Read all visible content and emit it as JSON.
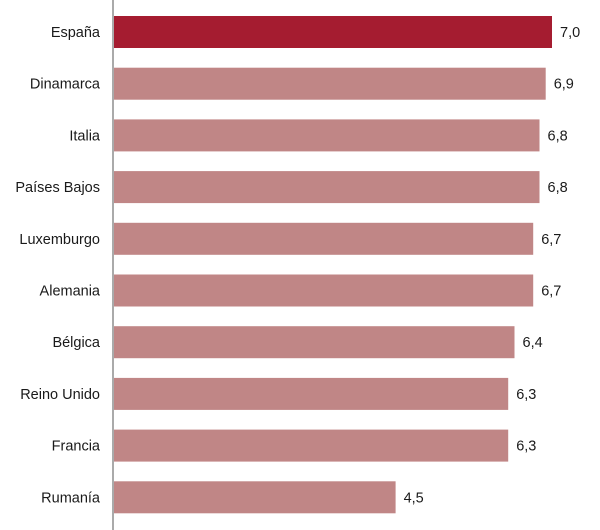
{
  "chart_data": {
    "type": "bar",
    "orientation": "horizontal",
    "categories": [
      "España",
      "Dinamarca",
      "Italia",
      "Países Bajos",
      "Luxemburgo",
      "Alemania",
      "Bélgica",
      "Reino Unido",
      "Francia",
      "Rumanía"
    ],
    "values": [
      7.0,
      6.9,
      6.8,
      6.8,
      6.7,
      6.7,
      6.4,
      6.3,
      6.3,
      4.5
    ],
    "value_labels": [
      "7,0",
      "6,9",
      "6,8",
      "6,8",
      "6,7",
      "6,7",
      "6,4",
      "6,3",
      "6,3",
      "4,5"
    ],
    "highlight_category": "España",
    "title": "",
    "xlabel": "",
    "ylabel": "",
    "xlim": [
      0,
      7.0
    ],
    "grid": false,
    "legend": "none",
    "colors": {
      "highlight": "#a51c30",
      "bar": "#c08686",
      "axis": "#555555"
    }
  }
}
